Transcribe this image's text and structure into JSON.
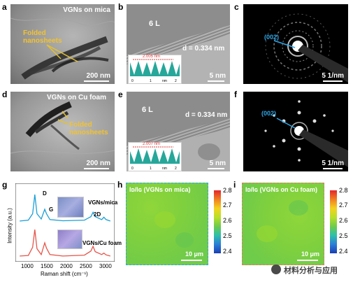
{
  "panels": {
    "a": {
      "letter": "a",
      "title": "VGNs on mica",
      "annotation": "Folded\nnanosheets",
      "scale": "200 nm"
    },
    "b": {
      "letter": "b",
      "layers": "6 L",
      "spacing": "d = 0.334 nm",
      "inset_value": "2.005 nm",
      "inset_ticks": [
        "0",
        "1",
        "nm",
        "2"
      ],
      "scale": "5 nm"
    },
    "c": {
      "letter": "c",
      "index": "(002)",
      "scale": "5 1/nm"
    },
    "d": {
      "letter": "d",
      "title": "VGNs on Cu foam",
      "annotation": "Folded\nnanosheets",
      "scale": "200 nm"
    },
    "e": {
      "letter": "e",
      "layers": "6 L",
      "spacing": "d = 0.334 nm",
      "inset_value": "2.007 nm",
      "inset_ticks": [
        "0",
        "1",
        "nm",
        "2"
      ],
      "scale": "5 nm"
    },
    "f": {
      "letter": "f",
      "index": "(002)",
      "scale": "5 1/nm"
    },
    "g": {
      "letter": "g",
      "ylabel": "Intensity (a.u.)",
      "xlabel": "Raman shift (cm⁻¹)",
      "xticks": [
        "1000",
        "1500",
        "2000",
        "2500",
        "3000"
      ],
      "peaks": [
        "D",
        "G",
        "2D"
      ],
      "series_labels": [
        "VGNs/mica",
        "VGNs/Cu foam"
      ]
    },
    "h": {
      "letter": "h",
      "title": "Iᴅ/Iɢ (VGNs on mica)",
      "scale": "10 μm"
    },
    "i": {
      "letter": "i",
      "title": "Iᴅ/Iɢ (VGNs on Cu foam)",
      "scale": "10 μm"
    }
  },
  "colorbar_ticks": [
    "2.8",
    "2.7",
    "2.6",
    "2.5",
    "2.4"
  ],
  "watermark": "材料分析与应用",
  "chart_data": {
    "type": "line",
    "x": [
      1000,
      1200,
      1300,
      1350,
      1400,
      1500,
      1580,
      1620,
      1700,
      2000,
      2500,
      2650,
      2700,
      2750,
      2900,
      2950,
      3000,
      3100
    ],
    "series": [
      {
        "name": "VGNs/mica",
        "values": [
          0.05,
          0.08,
          0.3,
          0.95,
          0.3,
          0.12,
          0.45,
          0.3,
          0.1,
          0.06,
          0.08,
          0.2,
          0.35,
          0.2,
          0.1,
          0.18,
          0.1,
          0.05
        ]
      },
      {
        "name": "VGNs/Cu foam",
        "values": [
          0.05,
          0.07,
          0.35,
          0.95,
          0.3,
          0.1,
          0.5,
          0.32,
          0.1,
          0.05,
          0.08,
          0.22,
          0.38,
          0.2,
          0.1,
          0.15,
          0.09,
          0.05
        ]
      }
    ],
    "xlabel": "Raman shift (cm⁻¹)",
    "ylabel": "Intensity (a.u.)",
    "xlim": [
      900,
      3200
    ],
    "colors": {
      "VGNs/mica": "#1b9fd6",
      "VGNs/Cu foam": "#e5554a"
    }
  }
}
